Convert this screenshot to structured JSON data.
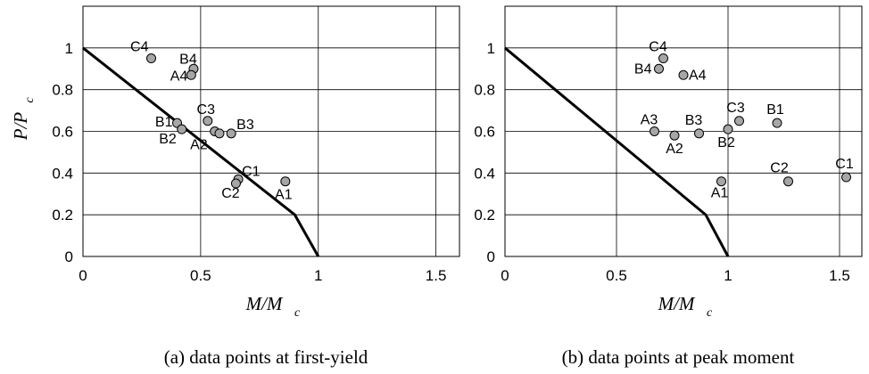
{
  "chart_data": [
    {
      "type": "scatter",
      "caption": "(a) data points at first-yield",
      "xlabel": "M/M",
      "xlabel_sub": "c",
      "ylabel": "P/P",
      "ylabel_sub": "c",
      "xlim": [
        0,
        1.6
      ],
      "ylim": [
        0,
        1.2
      ],
      "xticks": [
        0,
        0.5,
        1,
        1.5
      ],
      "yticks": [
        0,
        0.2,
        0.4,
        0.6,
        0.8,
        1
      ],
      "grid": true,
      "interaction_curve": {
        "x": [
          0,
          0.9,
          1
        ],
        "y": [
          1,
          0.2,
          0
        ]
      },
      "points": [
        {
          "label": "C4",
          "x": 0.29,
          "y": 0.95
        },
        {
          "label": "B4",
          "x": 0.47,
          "y": 0.9
        },
        {
          "label": "A4",
          "x": 0.46,
          "y": 0.87
        },
        {
          "label": "B1",
          "x": 0.4,
          "y": 0.64
        },
        {
          "label": "B2",
          "x": 0.42,
          "y": 0.61
        },
        {
          "label": "C3",
          "x": 0.53,
          "y": 0.65
        },
        {
          "label": "A2",
          "x": 0.56,
          "y": 0.6
        },
        {
          "label": "A2",
          "x": 0.58,
          "y": 0.59
        },
        {
          "label": "B3",
          "x": 0.63,
          "y": 0.59
        },
        {
          "label": "C1",
          "x": 0.66,
          "y": 0.37
        },
        {
          "label": "C2",
          "x": 0.65,
          "y": 0.35
        },
        {
          "label": "A1",
          "x": 0.86,
          "y": 0.36
        }
      ]
    },
    {
      "type": "scatter",
      "caption": "(b) data points at peak moment",
      "xlabel": "M/M",
      "xlabel_sub": "c",
      "ylabel": "",
      "ylabel_sub": "",
      "xlim": [
        0,
        1.6
      ],
      "ylim": [
        0,
        1.2
      ],
      "xticks": [
        0,
        0.5,
        1,
        1.5
      ],
      "yticks": [
        0,
        0.2,
        0.4,
        0.6,
        0.8,
        1
      ],
      "grid": true,
      "interaction_curve": {
        "x": [
          0,
          0.9,
          1
        ],
        "y": [
          1,
          0.2,
          0
        ]
      },
      "points": [
        {
          "label": "C4",
          "x": 0.71,
          "y": 0.95
        },
        {
          "label": "B4",
          "x": 0.69,
          "y": 0.9
        },
        {
          "label": "A4",
          "x": 0.8,
          "y": 0.87
        },
        {
          "label": "A3",
          "x": 0.67,
          "y": 0.6
        },
        {
          "label": "A2",
          "x": 0.76,
          "y": 0.58
        },
        {
          "label": "B3",
          "x": 0.87,
          "y": 0.59
        },
        {
          "label": "C3",
          "x": 1.05,
          "y": 0.65
        },
        {
          "label": "B2",
          "x": 1.0,
          "y": 0.61
        },
        {
          "label": "B1",
          "x": 1.22,
          "y": 0.64
        },
        {
          "label": "A1",
          "x": 0.97,
          "y": 0.36
        },
        {
          "label": "C2",
          "x": 1.27,
          "y": 0.36
        },
        {
          "label": "C1",
          "x": 1.53,
          "y": 0.38
        }
      ]
    }
  ]
}
